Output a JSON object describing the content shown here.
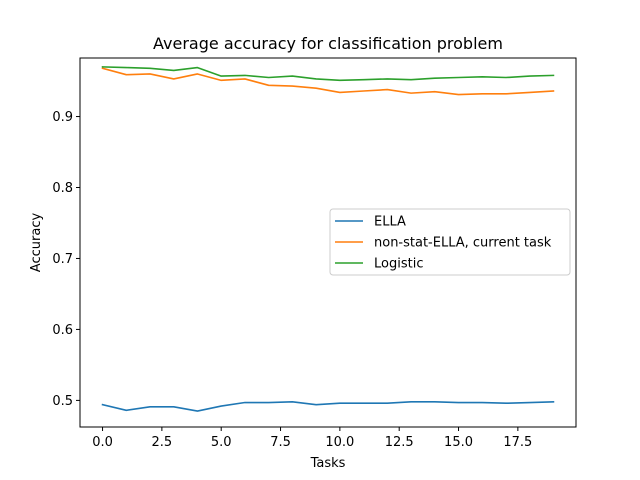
{
  "chart_data": {
    "type": "line",
    "title": "Average accuracy for classification problem",
    "xlabel": "Tasks",
    "ylabel": "Accuracy",
    "xlim": [
      -0.95,
      19.95
    ],
    "ylim": [
      0.4625,
      0.9825
    ],
    "xticks": [
      0,
      2.5,
      5,
      7.5,
      10,
      12.5,
      15,
      17.5
    ],
    "xtick_labels": [
      "0.0",
      "2.5",
      "5.0",
      "7.5",
      "10.0",
      "12.5",
      "15.0",
      "17.5"
    ],
    "yticks": [
      0.5,
      0.6,
      0.7,
      0.8,
      0.9
    ],
    "ytick_labels": [
      "0.5",
      "0.6",
      "0.7",
      "0.8",
      "0.9"
    ],
    "grid": false,
    "legend_position": "center-right",
    "x": [
      0,
      1,
      2,
      3,
      4,
      5,
      6,
      7,
      8,
      9,
      10,
      11,
      12,
      13,
      14,
      15,
      16,
      17,
      18,
      19
    ],
    "series": [
      {
        "name": "ELLA",
        "color": "#1f77b4",
        "values": [
          0.494,
          0.486,
          0.491,
          0.491,
          0.485,
          0.492,
          0.497,
          0.497,
          0.498,
          0.494,
          0.496,
          0.496,
          0.496,
          0.498,
          0.498,
          0.497,
          0.497,
          0.496,
          0.497,
          0.498
        ]
      },
      {
        "name": "non-stat-ELLA, current task",
        "color": "#ff7f0e",
        "values": [
          0.968,
          0.959,
          0.96,
          0.953,
          0.96,
          0.951,
          0.953,
          0.944,
          0.943,
          0.94,
          0.934,
          0.936,
          0.938,
          0.933,
          0.935,
          0.931,
          0.932,
          0.932,
          0.934,
          0.936
        ]
      },
      {
        "name": "Logistic",
        "color": "#2ca02c",
        "values": [
          0.97,
          0.969,
          0.968,
          0.965,
          0.969,
          0.957,
          0.958,
          0.955,
          0.957,
          0.953,
          0.951,
          0.952,
          0.953,
          0.952,
          0.954,
          0.955,
          0.956,
          0.955,
          0.957,
          0.958
        ]
      }
    ]
  }
}
